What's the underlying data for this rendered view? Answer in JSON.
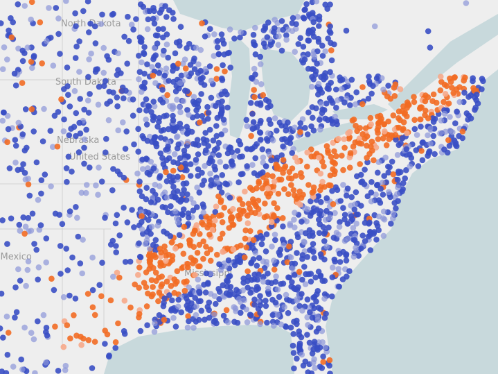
{
  "map": {
    "labels": {
      "north_dakota": "North Dakota",
      "south_dakota": "South Dakota",
      "nebraska": "Nebraska",
      "united_states": "United States",
      "new_mexico": "New Mexico",
      "mississippi": "Mississippi"
    },
    "colors": {
      "land": "#eeeeee",
      "water": "#c8d9dc",
      "border": "#d2d2d2",
      "marker_blue": "#3a4fc4",
      "marker_light_blue": "#8c96d8",
      "marker_orange": "#f26b23",
      "marker_light_orange": "#f6a88a"
    }
  }
}
